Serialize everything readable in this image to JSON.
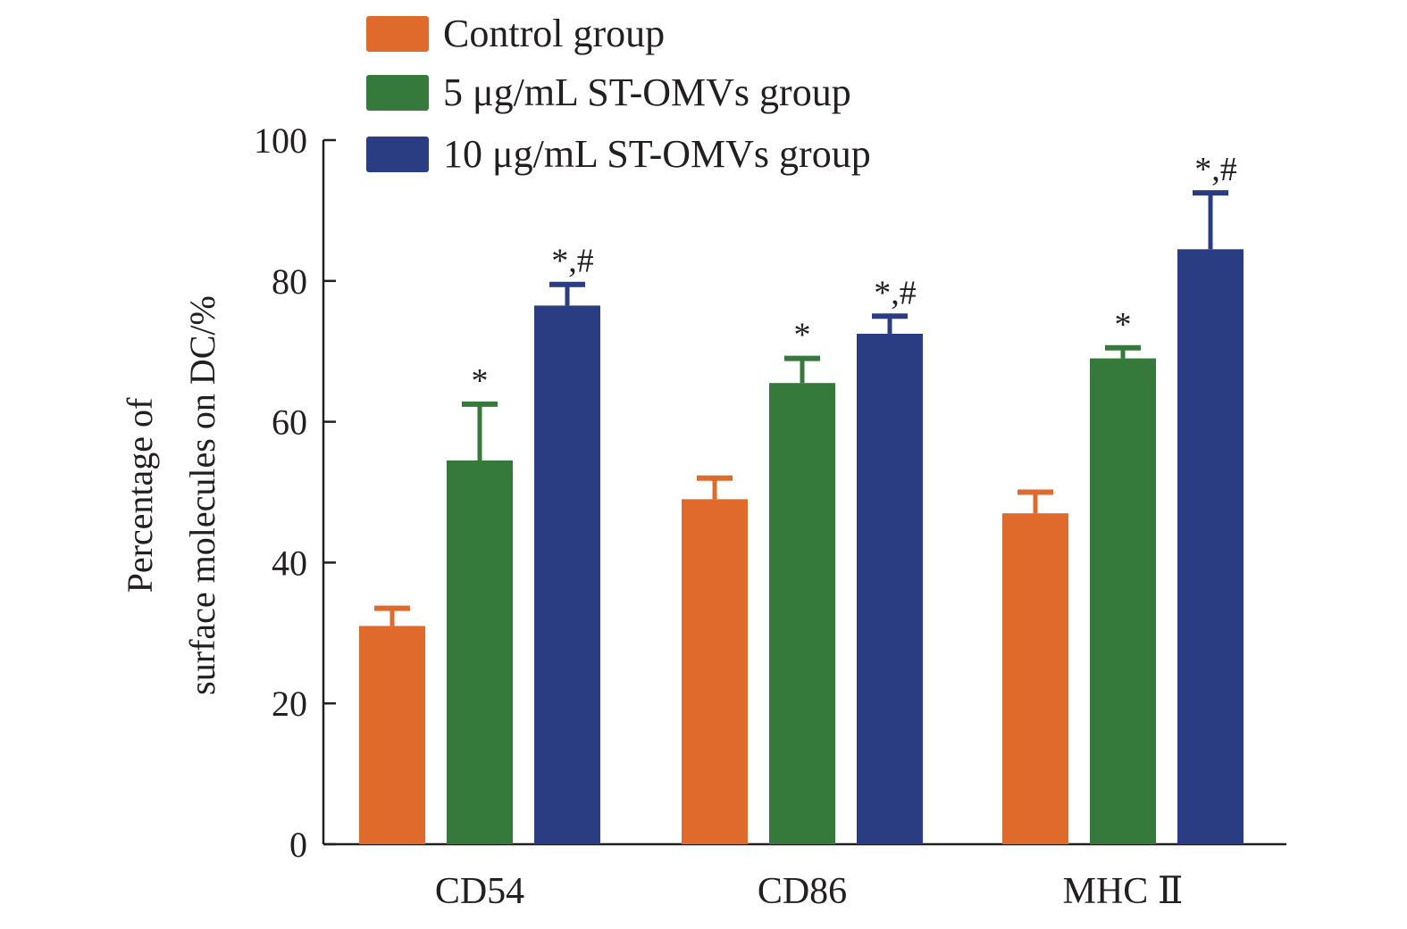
{
  "chart_data": {
    "type": "bar",
    "title": "",
    "ylabel_lines": [
      "Percentage of",
      "surface molecules on DC/%"
    ],
    "xlabel": "",
    "ylim": [
      0,
      100
    ],
    "yticks": [
      0,
      20,
      40,
      60,
      80,
      100
    ],
    "categories": [
      "CD54",
      "CD86",
      "MHC Ⅱ"
    ],
    "legend_position": "top",
    "series": [
      {
        "name": "Control group",
        "color": "#e06a2c",
        "values": [
          31,
          49,
          47
        ],
        "errors": [
          2.5,
          3,
          3
        ],
        "annotations": [
          "",
          "",
          ""
        ]
      },
      {
        "name": "5 μg/mL ST-OMVs group",
        "color": "#367a3b",
        "values": [
          54.5,
          65.5,
          69
        ],
        "errors": [
          8,
          3.5,
          1.5
        ],
        "annotations": [
          "*",
          "*",
          "*"
        ]
      },
      {
        "name": "10 μg/mL ST-OMVs group",
        "color": "#2b3d82",
        "values": [
          76.5,
          72.5,
          84.5
        ],
        "errors": [
          3,
          2.5,
          8
        ],
        "annotations": [
          "*,#",
          "*,#",
          "*,#"
        ]
      }
    ]
  }
}
